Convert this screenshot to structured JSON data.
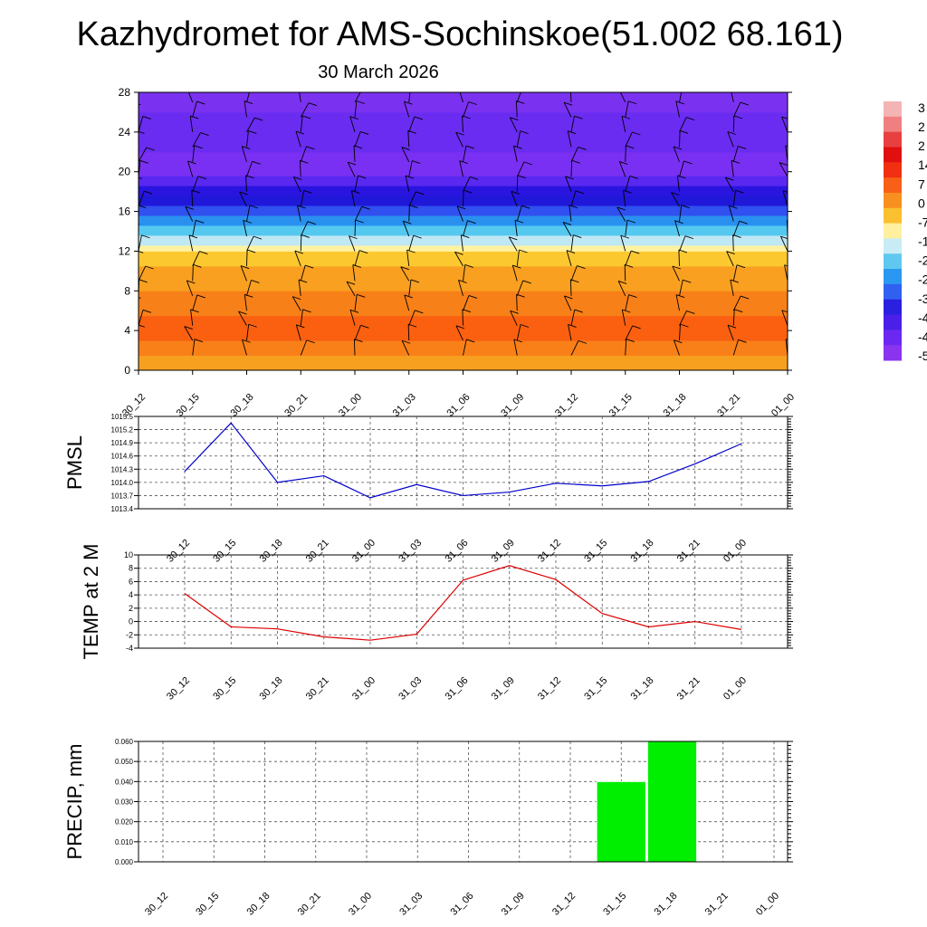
{
  "title": "Kazhydromet for AMS-Sochinskoe(51.002 68.161)",
  "subtitle": "30 March 2026",
  "time_labels": [
    "30_12",
    "30_15",
    "30_18",
    "30_21",
    "31_00",
    "31_03",
    "31_06",
    "31_09",
    "31_12",
    "31_15",
    "31_18",
    "31_21",
    "01_00"
  ],
  "colors": {
    "pmsl_line": "#0000cc",
    "temp_line": "#dd0000",
    "precip_bar": "#00ee00",
    "grid": "#555555"
  },
  "colorbar": {
    "visible_labels": [
      "3",
      "2",
      "2",
      "14",
      "7",
      "0",
      "-7",
      "-1",
      "-2",
      "-2",
      "-3",
      "-4",
      "-4",
      "-5"
    ]
  },
  "chart_data": [
    {
      "type": "heatmap",
      "name": "vertical-section",
      "title": "",
      "xlabel": "",
      "ylabel": "",
      "x": [
        "30_12",
        "30_15",
        "30_18",
        "30_21",
        "31_00",
        "31_03",
        "31_06",
        "31_09",
        "31_12",
        "31_15",
        "31_18",
        "31_21",
        "01_00"
      ],
      "ylim": [
        0,
        28
      ],
      "y_ticks": [
        0,
        4,
        8,
        12,
        16,
        20,
        24,
        28
      ],
      "bands": [
        {
          "from": 0,
          "to": 1.5,
          "color": "#f7a020"
        },
        {
          "from": 1.5,
          "to": 3,
          "color": "#f98018"
        },
        {
          "from": 3,
          "to": 5.5,
          "color": "#fa6010"
        },
        {
          "from": 5.5,
          "to": 8,
          "color": "#f88018"
        },
        {
          "from": 8,
          "to": 10.5,
          "color": "#f9a020"
        },
        {
          "from": 10.5,
          "to": 12,
          "color": "#fcc830"
        },
        {
          "from": 12,
          "to": 12.6,
          "color": "#fff2a0"
        },
        {
          "from": 12.6,
          "to": 13.6,
          "color": "#bfe8f5"
        },
        {
          "from": 13.6,
          "to": 14.6,
          "color": "#55c8f0"
        },
        {
          "from": 14.6,
          "to": 15.6,
          "color": "#2a90f0"
        },
        {
          "from": 15.6,
          "to": 16.6,
          "color": "#3050f0"
        },
        {
          "from": 16.6,
          "to": 17.6,
          "color": "#2018d8"
        },
        {
          "from": 17.6,
          "to": 18.6,
          "color": "#2a14e0"
        },
        {
          "from": 18.6,
          "to": 19.6,
          "color": "#5a28f0"
        },
        {
          "from": 19.6,
          "to": 22,
          "color": "#7a30f2"
        },
        {
          "from": 22,
          "to": 26,
          "color": "#6a2cf0"
        },
        {
          "from": 26,
          "to": 28,
          "color": "#7a32f0"
        }
      ]
    },
    {
      "type": "line",
      "name": "PMSL",
      "ylabel": "PMSL",
      "categories": [
        "30_12",
        "30_15",
        "30_18",
        "30_21",
        "31_00",
        "31_03",
        "31_06",
        "31_09",
        "31_12",
        "31_15",
        "31_18",
        "31_21",
        "01_00"
      ],
      "values": [
        1014.25,
        1015.35,
        1014.0,
        1014.15,
        1013.65,
        1013.95,
        1013.7,
        1013.78,
        1013.98,
        1013.92,
        1014.02,
        1014.42,
        1014.88
      ],
      "ylim": [
        1013.4,
        1015.5
      ],
      "y_ticks": [
        "1013.4",
        "1013.7",
        "1014.0",
        "1014.3",
        "1014.6",
        "1014.9",
        "1015.2",
        "1015.5"
      ],
      "grid": true
    },
    {
      "type": "line",
      "name": "TEMP at 2 M",
      "ylabel": "TEMP at 2 M",
      "categories": [
        "30_12",
        "30_15",
        "30_18",
        "30_21",
        "31_00",
        "31_03",
        "31_06",
        "31_09",
        "31_12",
        "31_15",
        "31_18",
        "31_21",
        "01_00"
      ],
      "values": [
        4.2,
        -0.8,
        -1.1,
        -2.3,
        -2.8,
        -1.9,
        6.2,
        8.4,
        6.3,
        1.2,
        -0.8,
        0.0,
        -1.2
      ],
      "ylim": [
        -4,
        10
      ],
      "y_ticks": [
        "-4",
        "-2",
        "0",
        "2",
        "4",
        "6",
        "8",
        "10"
      ],
      "grid": true
    },
    {
      "type": "bar",
      "name": "PRECIP, mm",
      "ylabel": "PRECIP, mm",
      "categories": [
        "30_12",
        "30_15",
        "30_18",
        "30_21",
        "31_00",
        "31_03",
        "31_06",
        "31_09",
        "31_12",
        "31_15",
        "31_18",
        "31_21",
        "01_00"
      ],
      "values": [
        0,
        0,
        0,
        0,
        0,
        0,
        0,
        0,
        0,
        0.04,
        0.06,
        0,
        0
      ],
      "ylim": [
        0,
        0.06
      ],
      "y_ticks": [
        "0.000",
        "0.010",
        "0.020",
        "0.030",
        "0.040",
        "0.050",
        "0.060"
      ],
      "grid": true
    }
  ]
}
